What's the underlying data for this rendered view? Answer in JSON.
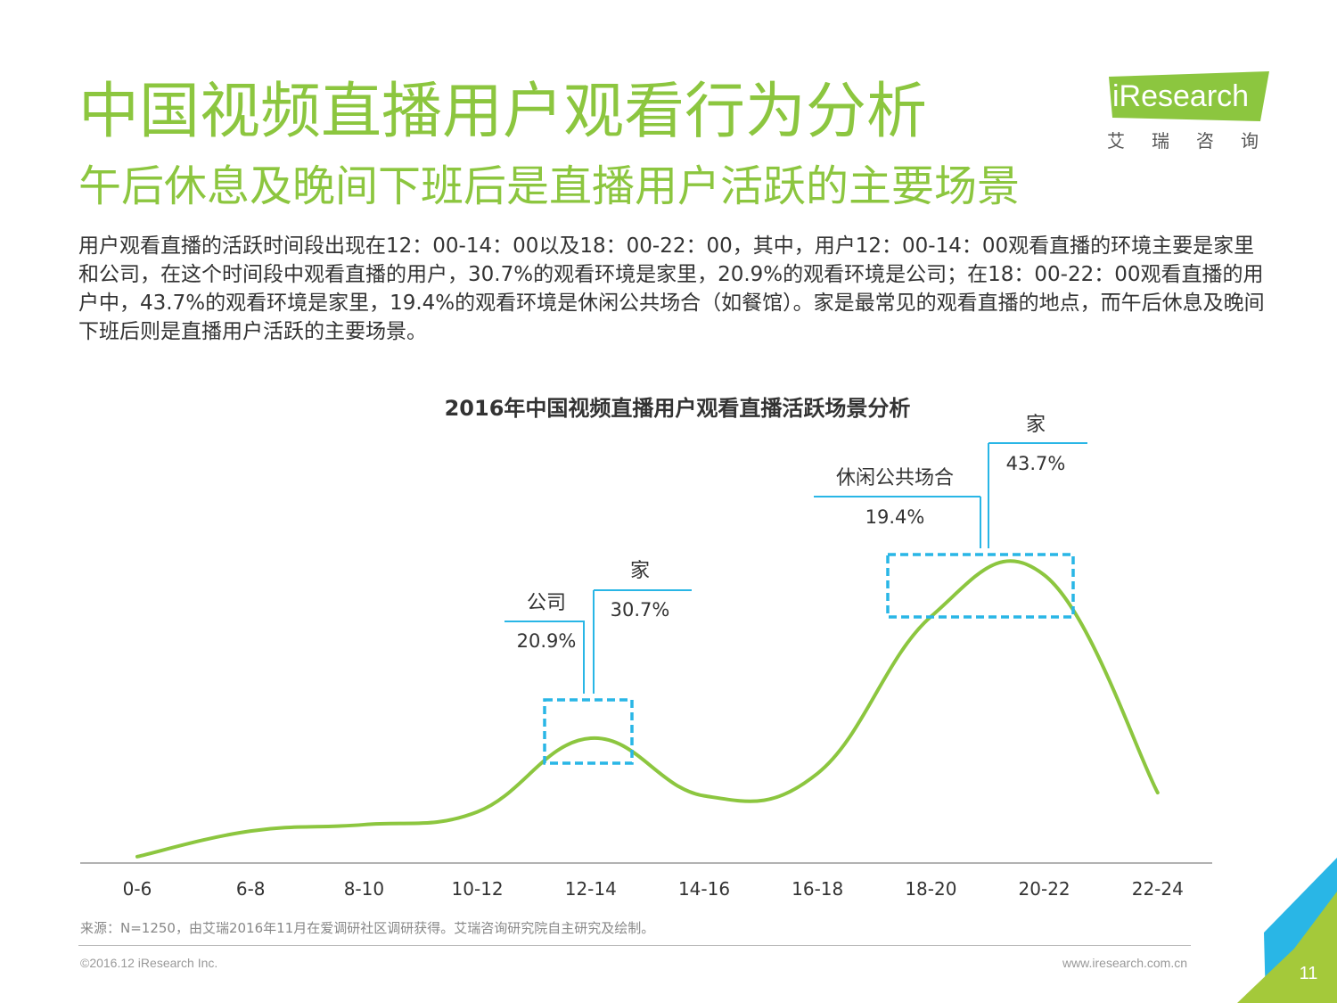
{
  "header": {
    "title": "中国视频直播用户观看行为分析",
    "subtitle": "午后休息及晚间下班后是直播用户活跃的主要场景"
  },
  "logo": {
    "brand": "iResearch",
    "cn": "艾瑞咨询"
  },
  "description": "用户观看直播的活跃时间段出现在12：00-14：00以及18：00-22：00，其中，用户12：00-14：00观看直播的环境主要是家里和公司，在这个时间段中观看直播的用户，30.7%的观看环境是家里，20.9%的观看环境是公司；在18：00-22：00观看直播的用户中，43.7%的观看环境是家里，19.4%的观看环境是休闲公共场合（如餐馆）。家是最常见的观看直播的地点，而午后休息及晚间下班后则是直播用户活跃的主要场景。",
  "chart_data": {
    "type": "line",
    "title": "2016年中国视频直播用户观看直播活跃场景分析",
    "categories": [
      "0-6",
      "6-8",
      "8-10",
      "10-12",
      "12-14",
      "14-16",
      "16-18",
      "18-20",
      "20-22",
      "22-24"
    ],
    "values": [
      2,
      10,
      12,
      16,
      39,
      21,
      28,
      77,
      90,
      22
    ],
    "y_axis_shown": false,
    "grid": false,
    "highlights": [
      {
        "range": "12-14",
        "callouts": [
          {
            "label": "公司",
            "value": "20.9%"
          },
          {
            "label": "家",
            "value": "30.7%"
          }
        ]
      },
      {
        "range": "18-22",
        "callouts": [
          {
            "label": "休闲公共场合",
            "value": "19.4%"
          },
          {
            "label": "家",
            "value": "43.7%"
          }
        ]
      }
    ],
    "colors": {
      "line": "#8cc63f",
      "highlight_box": "#29b6e6",
      "callout_line": "#29b6e6",
      "axis": "#999999"
    }
  },
  "source": "来源：N=1250，由艾瑞2016年11月在爱调研社区调研获得。艾瑞咨询研究院自主研究及绘制。",
  "footer": {
    "copyright": "©2016.12 iResearch Inc.",
    "website": "www.iresearch.com.cn",
    "page_number": "11"
  },
  "theme": {
    "accent": "#8cc63f",
    "corner_blue": "#29b6e6",
    "corner_green": "#a4c93a"
  }
}
